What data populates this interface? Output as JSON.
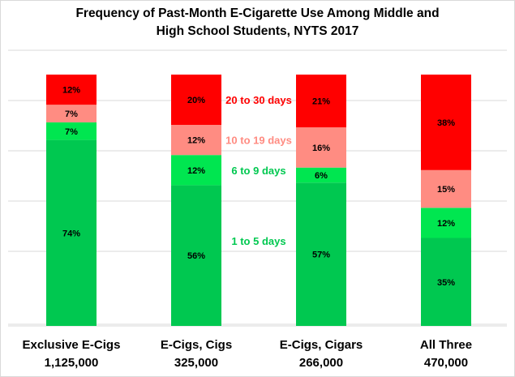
{
  "chart_data": {
    "type": "bar",
    "stacked": true,
    "title_line1": "Frequency of Past-Month E-Cigarette Use Among Middle and",
    "title_line2": "High School Students, NYTS 2017",
    "categories": [
      {
        "name": "Exclusive E-Cigs",
        "count": "1,125,000"
      },
      {
        "name": "E-Cigs, Cigs",
        "count": "325,000"
      },
      {
        "name": "E-Cigs, Cigars",
        "count": "266,000"
      },
      {
        "name": "All Three",
        "count": "470,000"
      }
    ],
    "series": [
      {
        "name": "1 to 5 days",
        "color": "#00c850",
        "values": [
          74,
          56,
          57,
          35
        ],
        "labels": [
          "74%",
          "56%",
          "57%",
          "35%"
        ]
      },
      {
        "name": "6 to 9 days",
        "color": "#00e650",
        "values": [
          7,
          12,
          6,
          12
        ],
        "labels": [
          "7%",
          "12%",
          "6%",
          "12%"
        ]
      },
      {
        "name": "10 to 19 days",
        "color": "#ff8c82",
        "values": [
          7,
          12,
          16,
          15
        ],
        "labels": [
          "7%",
          "12%",
          "16%",
          "15%"
        ]
      },
      {
        "name": "20 to 30 days",
        "color": "#ff0000",
        "values": [
          12,
          20,
          21,
          38
        ],
        "labels": [
          "12%",
          "20%",
          "21%",
          "38%"
        ]
      }
    ],
    "legend_colors": [
      "#00c850",
      "#00c850",
      "#ff8c82",
      "#ff0000"
    ],
    "ylim": [
      0,
      100
    ],
    "grid": true,
    "legend_placement": "inline between second and third bars"
  }
}
